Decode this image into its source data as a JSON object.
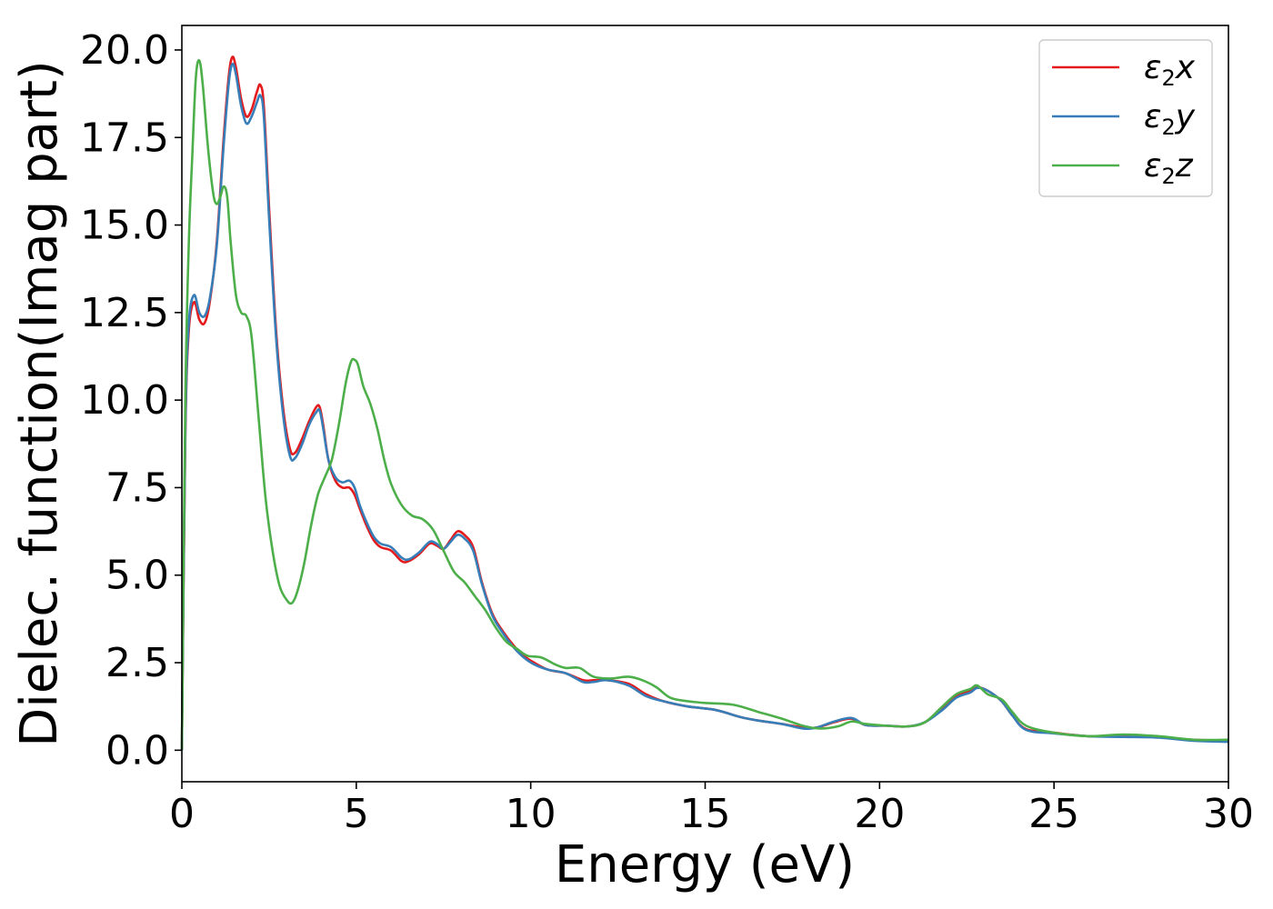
{
  "chart_data": {
    "type": "line",
    "xlabel": "Energy (eV)",
    "ylabel": "Dielec. function(Imag part)",
    "xlim": [
      0,
      30
    ],
    "ylim": [
      -0.9,
      20.7
    ],
    "xticks": [
      0,
      5,
      10,
      15,
      20,
      25,
      30
    ],
    "yticks": [
      0.0,
      2.5,
      5.0,
      7.5,
      10.0,
      12.5,
      15.0,
      17.5,
      20.0
    ],
    "xtick_labels": [
      "0",
      "5",
      "10",
      "15",
      "20",
      "25",
      "30"
    ],
    "ytick_labels": [
      "0.0",
      "2.5",
      "5.0",
      "7.5",
      "10.0",
      "12.5",
      "15.0",
      "17.5",
      "20.0"
    ],
    "legend_position": "top-right",
    "grid": false,
    "series": [
      {
        "name": "ε2x",
        "legend_base": "ε",
        "legend_sub": "2",
        "legend_var": "x",
        "color": "#e41a1c",
        "x": [
          0,
          0.1,
          0.2,
          0.35,
          0.5,
          0.65,
          0.8,
          1.0,
          1.2,
          1.35,
          1.45,
          1.55,
          1.7,
          1.85,
          2.0,
          2.15,
          2.25,
          2.35,
          2.5,
          2.7,
          2.9,
          3.1,
          3.25,
          3.45,
          3.65,
          3.85,
          3.95,
          4.05,
          4.2,
          4.4,
          4.6,
          4.8,
          4.95,
          5.1,
          5.3,
          5.5,
          5.7,
          6.0,
          6.3,
          6.5,
          6.8,
          7.1,
          7.3,
          7.5,
          7.7,
          7.9,
          8.1,
          8.35,
          8.6,
          8.9,
          9.2,
          9.5,
          9.8,
          10.1,
          10.5,
          11.0,
          11.5,
          11.8,
          12.2,
          12.8,
          13.3,
          13.8,
          14.5,
          15.3,
          16.0,
          16.5,
          17.2,
          17.8,
          18.2,
          18.7,
          19.2,
          19.6,
          20.2,
          20.8,
          21.3,
          21.8,
          22.2,
          22.6,
          22.8,
          23.1,
          23.5,
          23.8,
          24.2,
          25.0,
          26.0,
          27.0,
          28.0,
          29.0,
          30.0
        ],
        "y": [
          0.0,
          9.0,
          12.0,
          12.8,
          12.3,
          12.2,
          12.8,
          14.5,
          17.5,
          19.3,
          19.8,
          19.5,
          18.6,
          18.1,
          18.3,
          18.8,
          19.0,
          18.4,
          15.5,
          12.0,
          9.8,
          8.6,
          8.5,
          8.9,
          9.4,
          9.8,
          9.8,
          9.3,
          8.3,
          7.7,
          7.5,
          7.5,
          7.3,
          6.9,
          6.4,
          6.0,
          5.8,
          5.7,
          5.4,
          5.4,
          5.6,
          5.9,
          5.85,
          5.75,
          6.0,
          6.25,
          6.15,
          5.8,
          4.8,
          3.9,
          3.4,
          3.0,
          2.7,
          2.5,
          2.3,
          2.2,
          2.0,
          2.0,
          2.0,
          1.9,
          1.6,
          1.4,
          1.25,
          1.15,
          0.95,
          0.85,
          0.75,
          0.65,
          0.65,
          0.8,
          0.9,
          0.72,
          0.7,
          0.68,
          0.8,
          1.2,
          1.55,
          1.7,
          1.8,
          1.7,
          1.4,
          1.0,
          0.6,
          0.5,
          0.4,
          0.4,
          0.38,
          0.3,
          0.28
        ]
      },
      {
        "name": "ε2y",
        "legend_base": "ε",
        "legend_sub": "2",
        "legend_var": "y",
        "color": "#377eb8",
        "x": [
          0,
          0.1,
          0.2,
          0.35,
          0.5,
          0.65,
          0.8,
          1.0,
          1.2,
          1.35,
          1.45,
          1.55,
          1.7,
          1.85,
          2.0,
          2.15,
          2.25,
          2.35,
          2.5,
          2.7,
          2.9,
          3.1,
          3.25,
          3.45,
          3.65,
          3.85,
          3.95,
          4.05,
          4.2,
          4.4,
          4.6,
          4.8,
          4.95,
          5.1,
          5.3,
          5.5,
          5.7,
          6.0,
          6.3,
          6.5,
          6.8,
          7.1,
          7.3,
          7.5,
          7.7,
          7.9,
          8.1,
          8.35,
          8.6,
          8.9,
          9.2,
          9.5,
          9.8,
          10.1,
          10.5,
          11.0,
          11.5,
          11.8,
          12.2,
          12.8,
          13.3,
          13.8,
          14.5,
          15.3,
          16.0,
          16.5,
          17.2,
          17.8,
          18.2,
          18.7,
          19.2,
          19.6,
          20.2,
          20.8,
          21.3,
          21.8,
          22.2,
          22.6,
          22.8,
          23.1,
          23.5,
          23.8,
          24.2,
          25.0,
          26.0,
          27.0,
          28.0,
          29.0,
          30.0
        ],
        "y": [
          0.0,
          9.2,
          12.2,
          13.0,
          12.5,
          12.4,
          12.9,
          14.4,
          17.3,
          19.1,
          19.6,
          19.3,
          18.4,
          17.9,
          18.1,
          18.5,
          18.7,
          18.1,
          15.2,
          11.8,
          9.6,
          8.4,
          8.35,
          8.75,
          9.3,
          9.65,
          9.7,
          9.2,
          8.3,
          7.8,
          7.65,
          7.7,
          7.5,
          7.0,
          6.5,
          6.1,
          5.9,
          5.8,
          5.5,
          5.45,
          5.65,
          5.95,
          5.9,
          5.75,
          5.95,
          6.15,
          6.05,
          5.7,
          4.75,
          3.85,
          3.35,
          2.95,
          2.65,
          2.45,
          2.3,
          2.2,
          1.95,
          1.95,
          2.0,
          1.85,
          1.55,
          1.4,
          1.25,
          1.15,
          0.95,
          0.85,
          0.75,
          0.62,
          0.65,
          0.82,
          0.92,
          0.72,
          0.7,
          0.68,
          0.8,
          1.15,
          1.5,
          1.65,
          1.78,
          1.7,
          1.4,
          1.0,
          0.58,
          0.48,
          0.4,
          0.38,
          0.36,
          0.27,
          0.24
        ]
      },
      {
        "name": "ε2z",
        "legend_base": "ε",
        "legend_sub": "2",
        "legend_var": "z",
        "color": "#4daf4a",
        "x": [
          0,
          0.1,
          0.2,
          0.3,
          0.4,
          0.5,
          0.6,
          0.75,
          0.9,
          1.0,
          1.1,
          1.2,
          1.3,
          1.4,
          1.55,
          1.7,
          1.85,
          2.0,
          2.2,
          2.4,
          2.6,
          2.8,
          3.0,
          3.15,
          3.3,
          3.5,
          3.7,
          3.9,
          4.1,
          4.3,
          4.5,
          4.7,
          4.85,
          4.95,
          5.05,
          5.2,
          5.4,
          5.6,
          5.8,
          6.0,
          6.3,
          6.6,
          6.9,
          7.2,
          7.5,
          7.8,
          8.1,
          8.4,
          8.7,
          9.0,
          9.3,
          9.6,
          9.9,
          10.3,
          10.7,
          11.0,
          11.4,
          11.8,
          12.3,
          12.8,
          13.2,
          13.6,
          14.0,
          14.5,
          15.0,
          15.8,
          16.5,
          17.2,
          17.8,
          18.3,
          18.8,
          19.2,
          19.6,
          20.2,
          20.8,
          21.3,
          21.8,
          22.2,
          22.6,
          22.8,
          23.1,
          23.5,
          23.8,
          24.2,
          25.0,
          26.0,
          27.0,
          28.0,
          29.0,
          30.0
        ],
        "y": [
          0.0,
          10.0,
          14.5,
          17.0,
          19.2,
          19.7,
          19.0,
          17.2,
          15.9,
          15.6,
          15.8,
          16.1,
          15.8,
          14.5,
          13.0,
          12.5,
          12.4,
          11.8,
          9.5,
          7.2,
          5.7,
          4.7,
          4.3,
          4.2,
          4.5,
          5.3,
          6.4,
          7.3,
          7.8,
          8.3,
          9.3,
          10.5,
          11.1,
          11.15,
          11.0,
          10.4,
          9.9,
          9.2,
          8.3,
          7.6,
          7.0,
          6.7,
          6.6,
          6.3,
          5.7,
          5.1,
          4.8,
          4.4,
          4.0,
          3.5,
          3.1,
          2.9,
          2.7,
          2.65,
          2.45,
          2.35,
          2.35,
          2.1,
          2.05,
          2.1,
          2.0,
          1.8,
          1.5,
          1.4,
          1.35,
          1.3,
          1.1,
          0.9,
          0.7,
          0.62,
          0.68,
          0.82,
          0.75,
          0.7,
          0.68,
          0.8,
          1.25,
          1.6,
          1.75,
          1.85,
          1.6,
          1.45,
          1.1,
          0.7,
          0.5,
          0.4,
          0.45,
          0.4,
          0.3,
          0.3
        ]
      }
    ]
  }
}
